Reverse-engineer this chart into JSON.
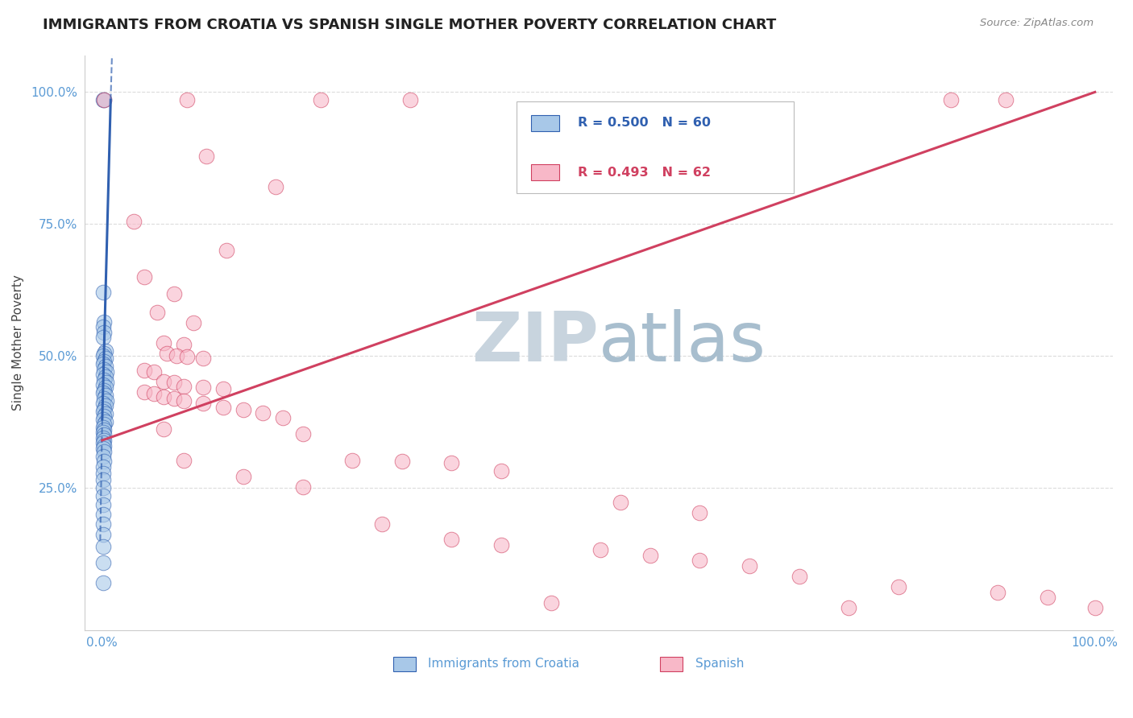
{
  "title": "IMMIGRANTS FROM CROATIA VS SPANISH SINGLE MOTHER POVERTY CORRELATION CHART",
  "source": "Source: ZipAtlas.com",
  "ylabel": "Single Mother Poverty",
  "croatia_color": "#a8c8e8",
  "spanish_color": "#f8b8c8",
  "croatia_line_color": "#3060b0",
  "spanish_line_color": "#d04060",
  "watermark_zip": "ZIP",
  "watermark_atlas": "atlas",
  "watermark_color_zip": "#c8d8e8",
  "watermark_color_atlas": "#a8c0d8",
  "croatia_points": [
    [
      0.001,
      0.985
    ],
    [
      0.002,
      0.985
    ],
    [
      0.001,
      0.62
    ],
    [
      0.002,
      0.565
    ],
    [
      0.001,
      0.555
    ],
    [
      0.002,
      0.545
    ],
    [
      0.001,
      0.535
    ],
    [
      0.003,
      0.51
    ],
    [
      0.002,
      0.505
    ],
    [
      0.001,
      0.5
    ],
    [
      0.003,
      0.495
    ],
    [
      0.002,
      0.49
    ],
    [
      0.001,
      0.485
    ],
    [
      0.003,
      0.48
    ],
    [
      0.002,
      0.475
    ],
    [
      0.004,
      0.47
    ],
    [
      0.001,
      0.465
    ],
    [
      0.003,
      0.46
    ],
    [
      0.002,
      0.455
    ],
    [
      0.004,
      0.45
    ],
    [
      0.001,
      0.445
    ],
    [
      0.003,
      0.44
    ],
    [
      0.002,
      0.435
    ],
    [
      0.001,
      0.43
    ],
    [
      0.003,
      0.425
    ],
    [
      0.002,
      0.42
    ],
    [
      0.004,
      0.415
    ],
    [
      0.001,
      0.41
    ],
    [
      0.003,
      0.405
    ],
    [
      0.002,
      0.4
    ],
    [
      0.001,
      0.395
    ],
    [
      0.003,
      0.39
    ],
    [
      0.002,
      0.385
    ],
    [
      0.001,
      0.38
    ],
    [
      0.003,
      0.375
    ],
    [
      0.002,
      0.37
    ],
    [
      0.001,
      0.365
    ],
    [
      0.002,
      0.36
    ],
    [
      0.001,
      0.355
    ],
    [
      0.002,
      0.35
    ],
    [
      0.001,
      0.345
    ],
    [
      0.002,
      0.34
    ],
    [
      0.001,
      0.335
    ],
    [
      0.002,
      0.33
    ],
    [
      0.001,
      0.325
    ],
    [
      0.002,
      0.318
    ],
    [
      0.001,
      0.31
    ],
    [
      0.002,
      0.3
    ],
    [
      0.001,
      0.29
    ],
    [
      0.001,
      0.278
    ],
    [
      0.001,
      0.265
    ],
    [
      0.001,
      0.25
    ],
    [
      0.001,
      0.235
    ],
    [
      0.001,
      0.218
    ],
    [
      0.001,
      0.2
    ],
    [
      0.001,
      0.182
    ],
    [
      0.001,
      0.162
    ],
    [
      0.001,
      0.138
    ],
    [
      0.001,
      0.108
    ],
    [
      0.001,
      0.07
    ]
  ],
  "spanish_points": [
    [
      0.002,
      0.985
    ],
    [
      0.085,
      0.985
    ],
    [
      0.22,
      0.985
    ],
    [
      0.31,
      0.985
    ],
    [
      0.855,
      0.985
    ],
    [
      0.91,
      0.985
    ],
    [
      0.105,
      0.878
    ],
    [
      0.175,
      0.82
    ],
    [
      0.032,
      0.755
    ],
    [
      0.125,
      0.7
    ],
    [
      0.042,
      0.65
    ],
    [
      0.072,
      0.618
    ],
    [
      0.055,
      0.582
    ],
    [
      0.092,
      0.562
    ],
    [
      0.062,
      0.525
    ],
    [
      0.082,
      0.522
    ],
    [
      0.065,
      0.505
    ],
    [
      0.075,
      0.5
    ],
    [
      0.085,
      0.498
    ],
    [
      0.102,
      0.495
    ],
    [
      0.042,
      0.472
    ],
    [
      0.052,
      0.47
    ],
    [
      0.062,
      0.452
    ],
    [
      0.072,
      0.45
    ],
    [
      0.082,
      0.442
    ],
    [
      0.102,
      0.44
    ],
    [
      0.122,
      0.438
    ],
    [
      0.042,
      0.432
    ],
    [
      0.052,
      0.428
    ],
    [
      0.062,
      0.422
    ],
    [
      0.072,
      0.42
    ],
    [
      0.082,
      0.415
    ],
    [
      0.102,
      0.41
    ],
    [
      0.122,
      0.402
    ],
    [
      0.142,
      0.398
    ],
    [
      0.162,
      0.392
    ],
    [
      0.182,
      0.382
    ],
    [
      0.062,
      0.362
    ],
    [
      0.202,
      0.352
    ],
    [
      0.082,
      0.302
    ],
    [
      0.252,
      0.302
    ],
    [
      0.302,
      0.3
    ],
    [
      0.352,
      0.298
    ],
    [
      0.402,
      0.282
    ],
    [
      0.142,
      0.272
    ],
    [
      0.202,
      0.252
    ],
    [
      0.522,
      0.222
    ],
    [
      0.602,
      0.202
    ],
    [
      0.282,
      0.182
    ],
    [
      0.352,
      0.152
    ],
    [
      0.402,
      0.142
    ],
    [
      0.502,
      0.132
    ],
    [
      0.552,
      0.122
    ],
    [
      0.602,
      0.112
    ],
    [
      0.652,
      0.102
    ],
    [
      0.702,
      0.082
    ],
    [
      0.802,
      0.062
    ],
    [
      0.902,
      0.052
    ],
    [
      0.952,
      0.042
    ],
    [
      1.0,
      0.022
    ],
    [
      0.452,
      0.032
    ],
    [
      0.752,
      0.022
    ]
  ],
  "croatia_trend": [
    0.0,
    1.0,
    0.38,
    0.985
  ],
  "spanish_trend": [
    0.0,
    0.36,
    1.0,
    1.0
  ],
  "legend_R_croatia": "R = 0.500",
  "legend_N_croatia": "N = 60",
  "legend_R_spanish": "R = 0.493",
  "legend_N_spanish": "N = 62",
  "bottom_label_croatia": "Immigrants from Croatia",
  "bottom_label_spanish": "Spanish"
}
